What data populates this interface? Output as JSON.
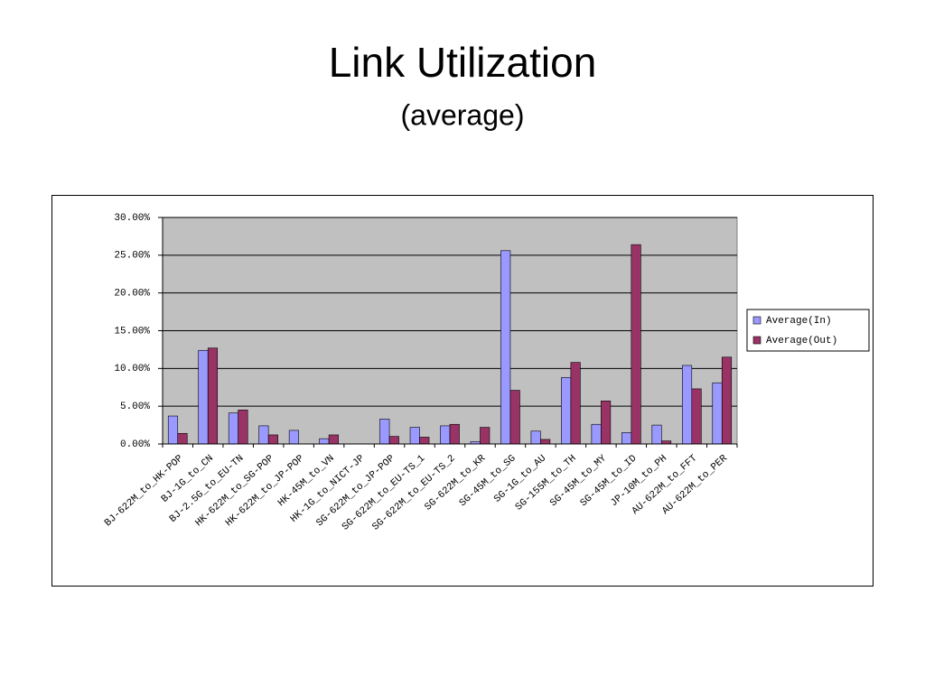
{
  "chart_data": {
    "type": "bar",
    "title": "Link Utilization",
    "subtitle": "(average)",
    "categories": [
      "BJ-622M_to_HK-POP",
      "BJ-1G_to_CN",
      "BJ-2.5G_to_EU-TN",
      "HK-622M_to_SG-POP",
      "HK-622M_to_JP-POP",
      "HK-45M_to_VN",
      "HK-1G_to_NICT-JP",
      "SG-622M_to_JP-POP",
      "SG-622M_to_EU-TS_1",
      "SG-622M_to_EU-TS_2",
      "SG-622M_to_KR",
      "SG-45M_to_SG",
      "SG-1G_to_AU",
      "SG-155M_to_TH",
      "SG-45M_to_MY",
      "SG-45M_to_ID",
      "JP-10M_to_PH",
      "AU-622M_to_FFT",
      "AU-622M_to_PER"
    ],
    "series": [
      {
        "name": "Average(In)",
        "color": "#9999ff",
        "values": [
          3.7,
          12.4,
          4.1,
          2.4,
          1.8,
          0.7,
          0,
          3.3,
          2.2,
          2.4,
          0.3,
          25.6,
          1.7,
          8.8,
          2.6,
          1.5,
          2.5,
          10.4,
          8.1
        ]
      },
      {
        "name": "Average(Out)",
        "color": "#993366",
        "values": [
          1.4,
          12.7,
          4.5,
          1.2,
          0,
          1.2,
          0,
          1.0,
          0.9,
          2.6,
          2.2,
          7.1,
          0.6,
          10.8,
          5.7,
          26.4,
          0.4,
          7.3,
          11.5
        ]
      }
    ],
    "ylim": [
      0,
      30
    ],
    "yticks": [
      {
        "value": 0,
        "label": "0.00%"
      },
      {
        "value": 5,
        "label": "5.00%"
      },
      {
        "value": 10,
        "label": "10.00%"
      },
      {
        "value": 15,
        "label": "15.00%"
      },
      {
        "value": 20,
        "label": "20.00%"
      },
      {
        "value": 25,
        "label": "25.00%"
      },
      {
        "value": 30,
        "label": "30.00%"
      }
    ],
    "grid": true,
    "plot_background": "#c0c0c0",
    "legend": "right"
  }
}
